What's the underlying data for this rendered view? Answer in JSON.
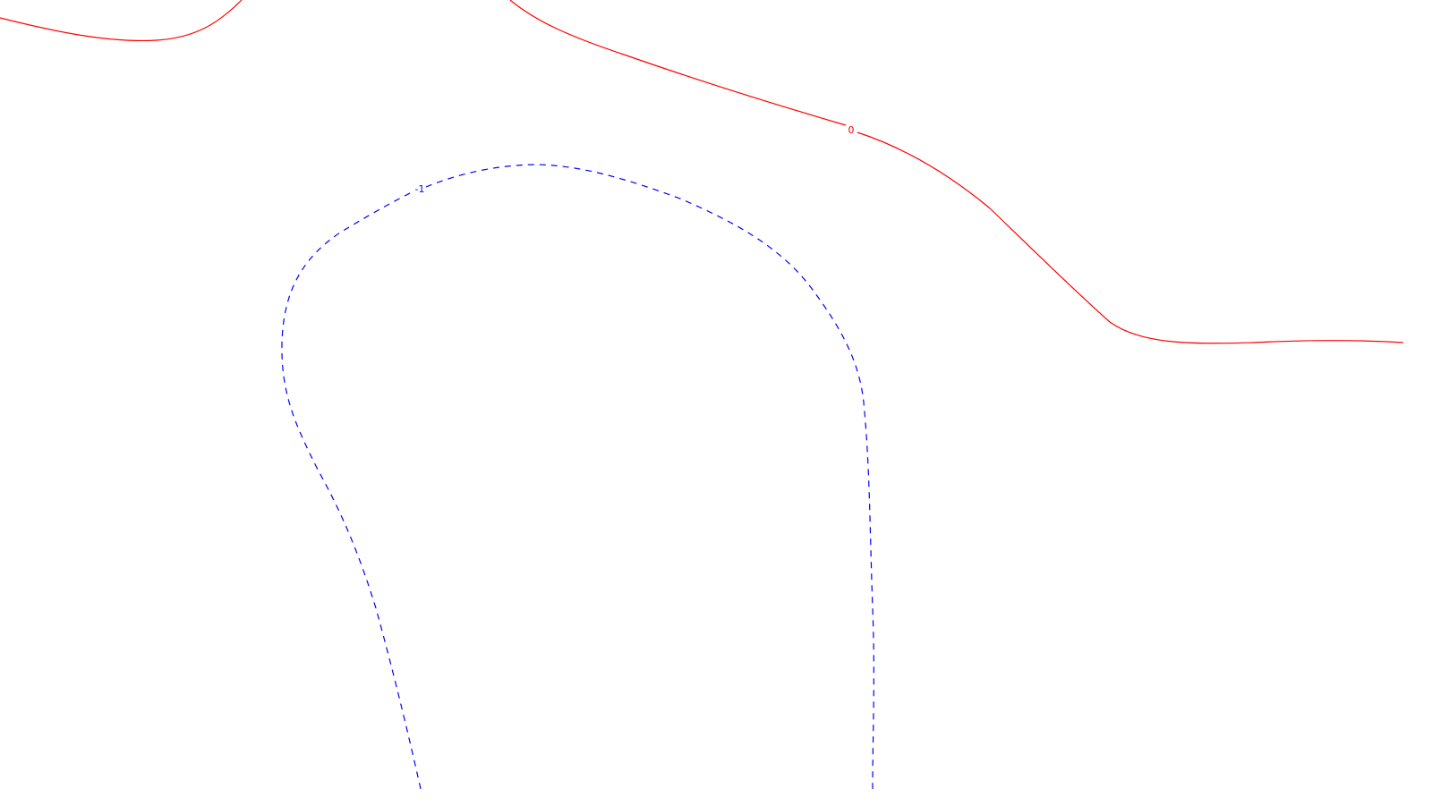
{
  "chart_data": {
    "type": "contour",
    "title": "",
    "xlabel": "",
    "ylabel": "",
    "grid": false,
    "legend": "none",
    "levels": [
      {
        "value": 0,
        "label": "0",
        "color": "#ff0000",
        "linestyle": "solid",
        "segments": 2
      },
      {
        "value": -1,
        "label": "-1",
        "color": "#0000ff",
        "linestyle": "dashed",
        "segments": 1
      }
    ]
  }
}
